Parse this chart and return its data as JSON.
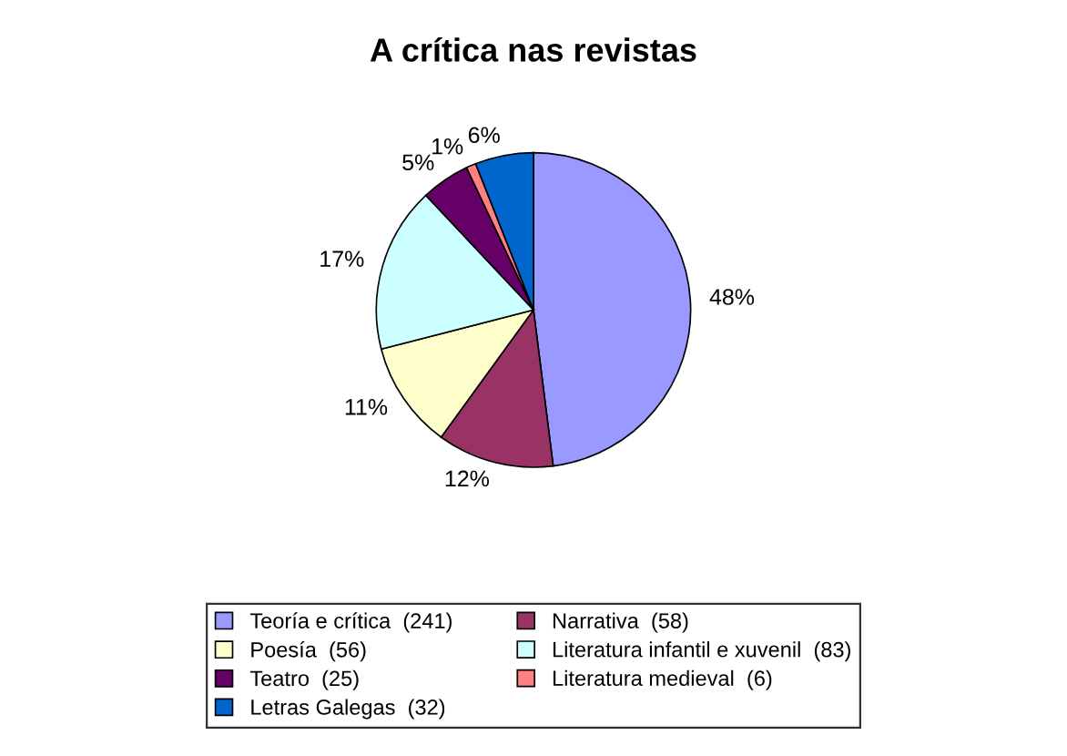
{
  "chart_data": {
    "type": "pie",
    "title": "A crítica nas revistas",
    "categories": [
      "Teoría e crítica  (241)",
      "Narrativa  (58)",
      "Poesía  (56)",
      "Literatura infantil e xuvenil  (83)",
      "Teatro  (25)",
      "Literatura medieval  (6)",
      "Letras Galegas  (32)"
    ],
    "values": [
      48,
      12,
      11,
      17,
      5,
      1,
      6
    ],
    "value_labels": [
      "48%",
      "12%",
      "11%",
      "17%",
      "5%",
      "1%",
      "6%"
    ],
    "colors": [
      "#9999ff",
      "#993366",
      "#ffffcc",
      "#ccffff",
      "#660066",
      "#ff8080",
      "#0066cc"
    ],
    "legend": "bottom"
  }
}
